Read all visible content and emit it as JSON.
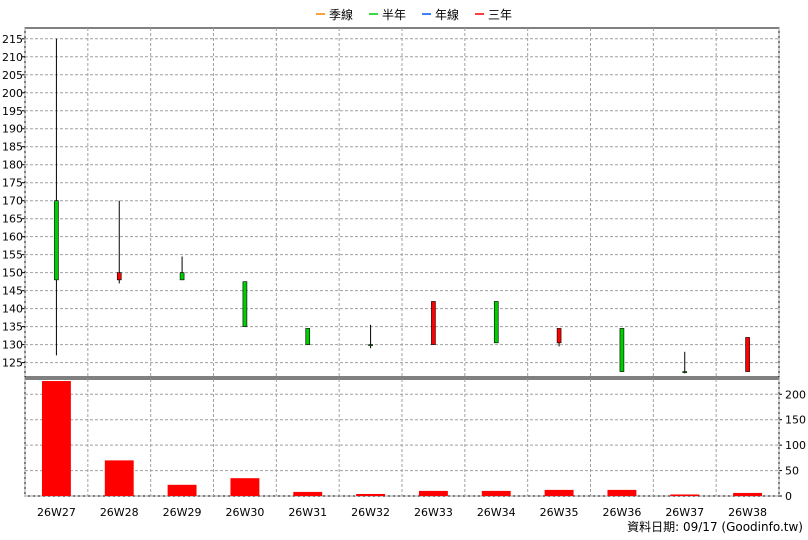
{
  "legend": [
    {
      "label": "季線",
      "color": "#ff8000"
    },
    {
      "label": "半年",
      "color": "#00cc00"
    },
    {
      "label": "年線",
      "color": "#0055ff"
    },
    {
      "label": "三年",
      "color": "#ff0000"
    }
  ],
  "footer": "資料日期: 09/17  (Goodinfo.tw)",
  "chart_data": {
    "type": "candlestick+bar",
    "categories": [
      "26W27",
      "26W28",
      "26W29",
      "26W30",
      "26W31",
      "26W32",
      "26W33",
      "26W34",
      "26W35",
      "26W36",
      "26W37",
      "26W38"
    ],
    "price": {
      "ylim": [
        121,
        218
      ],
      "ticks": [
        125,
        130,
        135,
        140,
        145,
        150,
        155,
        160,
        165,
        170,
        175,
        180,
        185,
        190,
        195,
        200,
        205,
        210,
        215
      ],
      "ohlc": [
        {
          "open": 148,
          "high": 215,
          "low": 127,
          "close": 170
        },
        {
          "open": 150,
          "high": 170,
          "low": 147,
          "close": 148
        },
        {
          "open": 148,
          "high": 154.5,
          "low": 148,
          "close": 150
        },
        {
          "open": 135,
          "high": 147.5,
          "low": 135,
          "close": 147.5
        },
        {
          "open": 130,
          "high": 134.5,
          "low": 130,
          "close": 134.5
        },
        {
          "open": 130,
          "high": 135.5,
          "low": 129,
          "close": 130
        },
        {
          "open": 142,
          "high": 142,
          "low": 130,
          "close": 130
        },
        {
          "open": 130.5,
          "high": 142,
          "low": 130.5,
          "close": 142
        },
        {
          "open": 134.5,
          "high": 134.5,
          "low": 129.5,
          "close": 130.5
        },
        {
          "open": 122.5,
          "high": 134.5,
          "low": 122.5,
          "close": 134.5
        },
        {
          "open": 122.5,
          "high": 128,
          "low": 122,
          "close": 122.5
        },
        {
          "open": 132,
          "high": 132,
          "low": 122.5,
          "close": 122.5
        }
      ],
      "up_color": "#00cc00",
      "down_color": "#ff0000"
    },
    "volume": {
      "ylim": [
        0,
        230
      ],
      "ticks": [
        0,
        50,
        100,
        150,
        200
      ],
      "values": [
        226,
        70,
        22,
        35,
        8,
        4,
        10,
        10,
        12,
        12,
        3,
        6
      ],
      "color": "#ff0000"
    }
  }
}
